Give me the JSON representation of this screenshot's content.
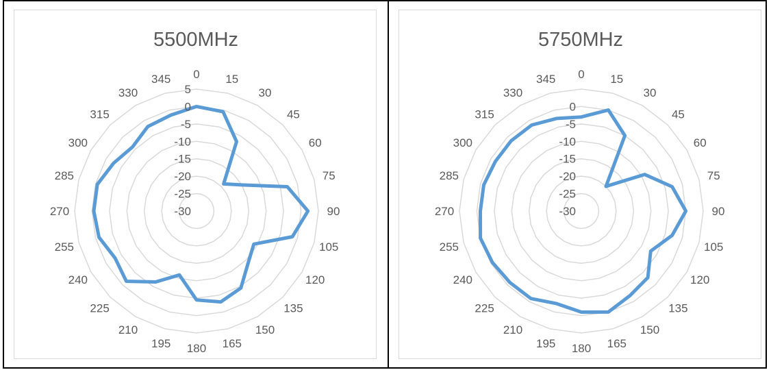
{
  "chart_data": [
    {
      "type": "radar",
      "title": "5500MHz",
      "angles": [
        "0",
        "15",
        "30",
        "45",
        "60",
        "75",
        "90",
        "105",
        "120",
        "135",
        "150",
        "165",
        "180",
        "195",
        "210",
        "225",
        "240",
        "255",
        "270",
        "285",
        "300",
        "315",
        "330",
        "345"
      ],
      "rlim": [
        -30,
        5
      ],
      "rticks": [
        "5",
        "0",
        "-5",
        "-10",
        "-15",
        "-20",
        "-25",
        "-30"
      ],
      "grid": true,
      "series": [
        {
          "values": [
            0,
            -0.5,
            -7,
            -19,
            -15,
            -3,
            2,
            -1.5,
            -11,
            -9,
            -4.5,
            -3,
            -4.5,
            -11,
            -6.5,
            -1.5,
            -3,
            -1,
            -0.5,
            -0.5,
            -2.5,
            -4,
            -2,
            -1.5
          ]
        }
      ],
      "line_color": "#5b9bd5"
    },
    {
      "type": "radar",
      "title": "5750MHz",
      "angles": [
        "0",
        "15",
        "30",
        "45",
        "60",
        "75",
        "90",
        "105",
        "120",
        "135",
        "150",
        "165",
        "180",
        "195",
        "210",
        "225",
        "240",
        "255",
        "270",
        "285",
        "300",
        "315",
        "330",
        "345"
      ],
      "rlim": [
        -30,
        5
      ],
      "rticks": [
        "0",
        "-5",
        "-10",
        "-15",
        "-20",
        "-25",
        "-30"
      ],
      "grid": true,
      "series": [
        {
          "values": [
            -3,
            0,
            -5,
            -20,
            -9,
            -3,
            0,
            -3,
            -7,
            -3,
            -2,
            0,
            -1,
            -2.5,
            -1,
            -1,
            -0.5,
            0,
            -1,
            -1,
            -1.5,
            -1.5,
            -1.5,
            -2.5
          ]
        }
      ],
      "line_color": "#5b9bd5"
    }
  ]
}
